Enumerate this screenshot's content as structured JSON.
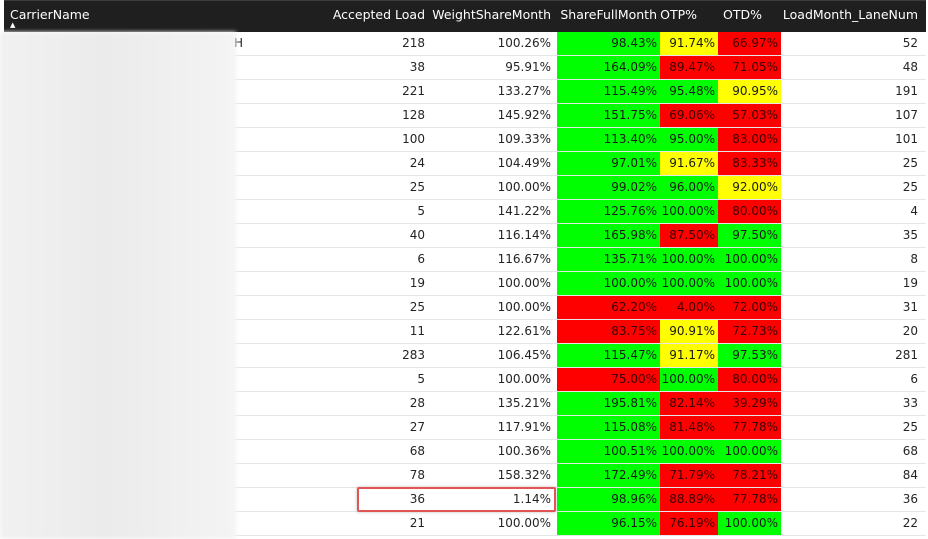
{
  "header": {
    "carrier_name": "CarrierName",
    "accepted_load": "Accepted Load",
    "weight_share_month": "WeightShareMonth",
    "share_full_month": "ShareFullMonth",
    "otp": "OTP%",
    "otd": "OTD%",
    "lane_num": "LoadMonth_LaneNum",
    "sort_indicator": "▲"
  },
  "colors": {
    "green": "#00ff00",
    "yellow": "#ffff00",
    "red": "#ff0000",
    "header_bg": "#1f1f1f"
  },
  "first_row_name_fragment": "H",
  "rows": [
    {
      "acc": "218",
      "wsm": "100.26%",
      "sfm": "98.43%",
      "sfm_c": "g",
      "otp": "91.74%",
      "otp_c": "y",
      "otd": "66.97%",
      "otd_c": "r",
      "lane": "52"
    },
    {
      "acc": "38",
      "wsm": "95.91%",
      "sfm": "164.09%",
      "sfm_c": "g",
      "otp": "89.47%",
      "otp_c": "r",
      "otd": "71.05%",
      "otd_c": "r",
      "lane": "48"
    },
    {
      "acc": "221",
      "wsm": "133.27%",
      "sfm": "115.49%",
      "sfm_c": "g",
      "otp": "95.48%",
      "otp_c": "g",
      "otd": "90.95%",
      "otd_c": "y",
      "lane": "191"
    },
    {
      "acc": "128",
      "wsm": "145.92%",
      "sfm": "151.75%",
      "sfm_c": "g",
      "otp": "69.06%",
      "otp_c": "r",
      "otd": "57.03%",
      "otd_c": "r",
      "lane": "107"
    },
    {
      "acc": "100",
      "wsm": "109.33%",
      "sfm": "113.40%",
      "sfm_c": "g",
      "otp": "95.00%",
      "otp_c": "g",
      "otd": "83.00%",
      "otd_c": "r",
      "lane": "101"
    },
    {
      "acc": "24",
      "wsm": "104.49%",
      "sfm": "97.01%",
      "sfm_c": "g",
      "otp": "91.67%",
      "otp_c": "y",
      "otd": "83.33%",
      "otd_c": "r",
      "lane": "25"
    },
    {
      "acc": "25",
      "wsm": "100.00%",
      "sfm": "99.02%",
      "sfm_c": "g",
      "otp": "96.00%",
      "otp_c": "g",
      "otd": "92.00%",
      "otd_c": "y",
      "lane": "25"
    },
    {
      "acc": "5",
      "wsm": "141.22%",
      "sfm": "125.76%",
      "sfm_c": "g",
      "otp": "100.00%",
      "otp_c": "g",
      "otd": "80.00%",
      "otd_c": "r",
      "lane": "4"
    },
    {
      "acc": "40",
      "wsm": "116.14%",
      "sfm": "165.98%",
      "sfm_c": "g",
      "otp": "87.50%",
      "otp_c": "r",
      "otd": "97.50%",
      "otd_c": "g",
      "lane": "35"
    },
    {
      "acc": "6",
      "wsm": "116.67%",
      "sfm": "135.71%",
      "sfm_c": "g",
      "otp": "100.00%",
      "otp_c": "g",
      "otd": "100.00%",
      "otd_c": "g",
      "lane": "8"
    },
    {
      "acc": "19",
      "wsm": "100.00%",
      "sfm": "100.00%",
      "sfm_c": "g",
      "otp": "100.00%",
      "otp_c": "g",
      "otd": "100.00%",
      "otd_c": "g",
      "lane": "19"
    },
    {
      "acc": "25",
      "wsm": "100.00%",
      "sfm": "62.20%",
      "sfm_c": "r",
      "otp": "4.00%",
      "otp_c": "r",
      "otd": "72.00%",
      "otd_c": "r",
      "lane": "31"
    },
    {
      "acc": "11",
      "wsm": "122.61%",
      "sfm": "83.75%",
      "sfm_c": "r",
      "otp": "90.91%",
      "otp_c": "y",
      "otd": "72.73%",
      "otd_c": "r",
      "lane": "20"
    },
    {
      "acc": "283",
      "wsm": "106.45%",
      "sfm": "115.47%",
      "sfm_c": "g",
      "otp": "91.17%",
      "otp_c": "y",
      "otd": "97.53%",
      "otd_c": "g",
      "lane": "281"
    },
    {
      "acc": "5",
      "wsm": "100.00%",
      "sfm": "75.00%",
      "sfm_c": "r",
      "otp": "100.00%",
      "otp_c": "g",
      "otd": "80.00%",
      "otd_c": "r",
      "lane": "6"
    },
    {
      "acc": "28",
      "wsm": "135.21%",
      "sfm": "195.81%",
      "sfm_c": "g",
      "otp": "82.14%",
      "otp_c": "r",
      "otd": "39.29%",
      "otd_c": "r",
      "lane": "33"
    },
    {
      "acc": "27",
      "wsm": "117.91%",
      "sfm": "115.08%",
      "sfm_c": "g",
      "otp": "81.48%",
      "otp_c": "r",
      "otd": "77.78%",
      "otd_c": "r",
      "lane": "25"
    },
    {
      "acc": "68",
      "wsm": "100.36%",
      "sfm": "100.51%",
      "sfm_c": "g",
      "otp": "100.00%",
      "otp_c": "g",
      "otd": "100.00%",
      "otd_c": "g",
      "lane": "68"
    },
    {
      "acc": "78",
      "wsm": "158.32%",
      "sfm": "172.49%",
      "sfm_c": "g",
      "otp": "71.79%",
      "otp_c": "r",
      "otd": "78.21%",
      "otd_c": "r",
      "lane": "84"
    },
    {
      "acc": "36",
      "wsm": "1.14%",
      "sfm": "98.96%",
      "sfm_c": "g",
      "otp": "88.89%",
      "otp_c": "r",
      "otd": "77.78%",
      "otd_c": "r",
      "lane": "36"
    },
    {
      "acc": "21",
      "wsm": "100.00%",
      "sfm": "96.15%",
      "sfm_c": "g",
      "otp": "76.19%",
      "otp_c": "r",
      "otd": "100.00%",
      "otd_c": "g",
      "lane": "22"
    }
  ]
}
